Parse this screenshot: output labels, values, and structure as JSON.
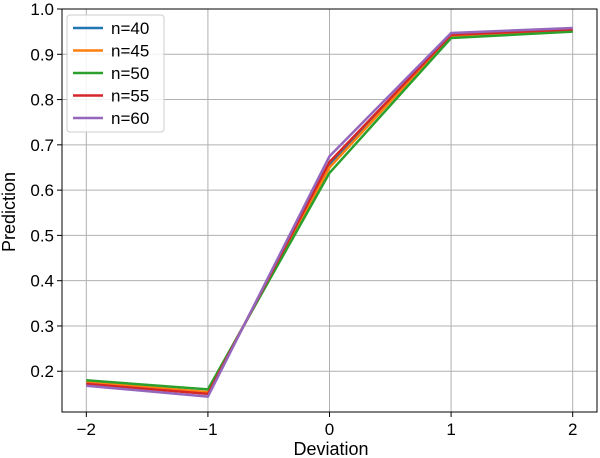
{
  "chart_data": {
    "type": "line",
    "title": "",
    "xlabel": "Deviation",
    "ylabel": "Prediction",
    "x": [
      -2,
      -1,
      0,
      1,
      2
    ],
    "xticks": [
      -2,
      -1,
      0,
      1,
      2
    ],
    "xtick_labels": [
      "−2",
      "−1",
      "0",
      "1",
      "2"
    ],
    "yticks": [
      0.2,
      0.3,
      0.4,
      0.5,
      0.6,
      0.7,
      0.8,
      0.9,
      1.0
    ],
    "ytick_labels": [
      "0.2",
      "0.3",
      "0.4",
      "0.5",
      "0.6",
      "0.7",
      "0.8",
      "0.9",
      "1.0"
    ],
    "xlim": [
      -2.2,
      2.2
    ],
    "ylim": [
      0.11,
      1.0
    ],
    "grid": true,
    "legend_position": "top-left",
    "series": [
      {
        "name": "n=40",
        "color": "#1f77b4",
        "values": [
          0.175,
          0.152,
          0.655,
          0.94,
          0.953
        ]
      },
      {
        "name": "n=45",
        "color": "#ff7f0e",
        "values": [
          0.176,
          0.154,
          0.65,
          0.941,
          0.953
        ]
      },
      {
        "name": "n=50",
        "color": "#2ca02c",
        "values": [
          0.18,
          0.16,
          0.638,
          0.936,
          0.95
        ]
      },
      {
        "name": "n=55",
        "color": "#d62728",
        "values": [
          0.172,
          0.15,
          0.662,
          0.943,
          0.955
        ]
      },
      {
        "name": "n=60",
        "color": "#9467bd",
        "values": [
          0.168,
          0.144,
          0.675,
          0.947,
          0.958
        ]
      }
    ]
  }
}
